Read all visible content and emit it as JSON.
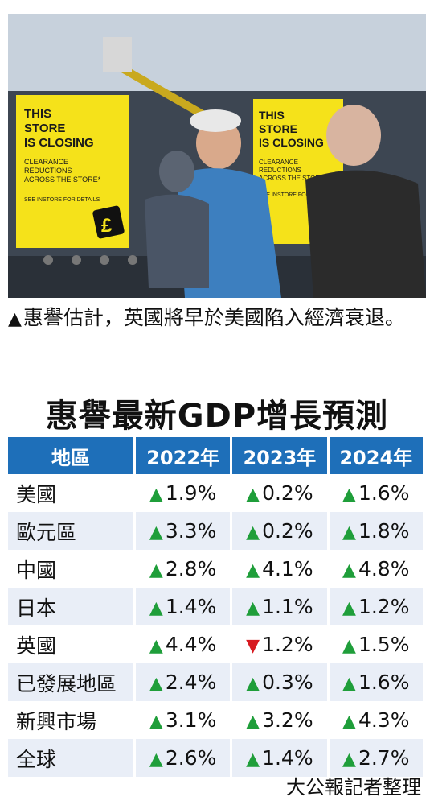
{
  "photo": {
    "sign_left": {
      "headline": "THIS STORE IS CLOSING",
      "line2": "CLEARANCE REDUCTIONS ACROSS THE STORE*",
      "line3": "SEE INSTORE FOR DETAILS"
    },
    "sign_right": {
      "headline": "THIS STORE IS CLOSING",
      "line2": "CLEARANCE REDUCTIONS ACROSS THE STORE*",
      "line3": "SEE INSTORE FOR DETAILS"
    },
    "colors": {
      "sign": "#f5e21a",
      "sky": "#c9d3de",
      "shirt": "#3d7fbf"
    }
  },
  "caption": "惠譽估計，英國將早於美國陷入經濟衰退。",
  "title": "惠譽最新GDP增長預測",
  "table": {
    "headers": [
      "地區",
      "2022年",
      "2023年",
      "2024年"
    ],
    "rows": [
      {
        "region": "美國",
        "values": [
          {
            "dir": "up",
            "v": "1.9%"
          },
          {
            "dir": "up",
            "v": "0.2%"
          },
          {
            "dir": "up",
            "v": "1.6%"
          }
        ]
      },
      {
        "region": "歐元區",
        "values": [
          {
            "dir": "up",
            "v": "3.3%"
          },
          {
            "dir": "up",
            "v": "0.2%"
          },
          {
            "dir": "up",
            "v": "1.8%"
          }
        ]
      },
      {
        "region": "中國",
        "values": [
          {
            "dir": "up",
            "v": "2.8%"
          },
          {
            "dir": "up",
            "v": "4.1%"
          },
          {
            "dir": "up",
            "v": "4.8%"
          }
        ]
      },
      {
        "region": "日本",
        "values": [
          {
            "dir": "up",
            "v": "1.4%"
          },
          {
            "dir": "up",
            "v": "1.1%"
          },
          {
            "dir": "up",
            "v": "1.2%"
          }
        ]
      },
      {
        "region": "英國",
        "values": [
          {
            "dir": "up",
            "v": "4.4%"
          },
          {
            "dir": "down",
            "v": "1.2%"
          },
          {
            "dir": "up",
            "v": "1.5%"
          }
        ]
      },
      {
        "region": "已發展地區",
        "values": [
          {
            "dir": "up",
            "v": "2.4%"
          },
          {
            "dir": "up",
            "v": "0.3%"
          },
          {
            "dir": "up",
            "v": "1.6%"
          }
        ]
      },
      {
        "region": "新興市場",
        "values": [
          {
            "dir": "up",
            "v": "3.1%"
          },
          {
            "dir": "up",
            "v": "3.2%"
          },
          {
            "dir": "up",
            "v": "4.3%"
          }
        ]
      },
      {
        "region": "全球",
        "values": [
          {
            "dir": "up",
            "v": "2.6%"
          },
          {
            "dir": "up",
            "v": "1.4%"
          },
          {
            "dir": "up",
            "v": "2.7%"
          }
        ]
      }
    ],
    "colors": {
      "header": "#1e6fb9",
      "stripe": "#e9eef7",
      "up": "#1f9e3a",
      "down": "#d71920"
    }
  },
  "source": "大公報記者整理"
}
